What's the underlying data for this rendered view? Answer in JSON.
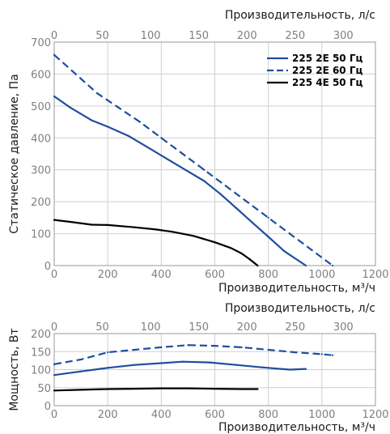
{
  "chart_data": [
    {
      "type": "line",
      "xlabel": "Производительность, м³/ч",
      "ylabel": "Статическое давление, Па",
      "x2label": "Производительность, л/с",
      "xlim": [
        0,
        1200
      ],
      "ylim": [
        0,
        700
      ],
      "x2lim": [
        0,
        333.33
      ],
      "xticks": [
        0,
        200,
        400,
        600,
        800,
        1000,
        1200
      ],
      "yticks": [
        0,
        100,
        200,
        300,
        400,
        500,
        600,
        700
      ],
      "x2ticks": [
        0,
        50,
        100,
        150,
        200,
        250,
        300
      ],
      "grid": true,
      "legend": "top-right",
      "series": [
        {
          "name": "225 2E 50 Гц",
          "color": "#1f4e9f",
          "dash": "solid",
          "x": [
            0,
            60,
            140,
            200,
            280,
            360,
            440,
            500,
            560,
            620,
            680,
            740,
            800,
            860,
            940
          ],
          "y": [
            530,
            495,
            455,
            435,
            405,
            365,
            325,
            295,
            265,
            225,
            180,
            135,
            90,
            45,
            0
          ]
        },
        {
          "name": "225 2E 60 Гц",
          "color": "#1f4e9f",
          "dash": "dashed",
          "x": [
            0,
            80,
            160,
            240,
            320,
            400,
            480,
            560,
            640,
            720,
            800,
            880,
            960,
            1040
          ],
          "y": [
            660,
            600,
            540,
            495,
            450,
            400,
            350,
            300,
            250,
            200,
            150,
            100,
            50,
            0
          ]
        },
        {
          "name": "225 4E 50 Гц",
          "color": "#000000",
          "dash": "solid",
          "x": [
            0,
            60,
            140,
            200,
            300,
            380,
            440,
            520,
            600,
            660,
            700,
            730,
            760
          ],
          "y": [
            143,
            137,
            128,
            127,
            120,
            113,
            106,
            93,
            73,
            55,
            38,
            20,
            0
          ]
        }
      ]
    },
    {
      "type": "line",
      "xlabel": "Производительность, м³/ч",
      "ylabel": "Мощность, Вт",
      "x2label": "Производительность, л/с",
      "xlim": [
        0,
        1200
      ],
      "ylim": [
        0,
        200
      ],
      "x2lim": [
        0,
        333.33
      ],
      "xticks": [
        0,
        200,
        400,
        600,
        800,
        1000,
        1200
      ],
      "yticks": [
        0,
        50,
        100,
        150,
        200
      ],
      "x2ticks": [
        0,
        50,
        100,
        150,
        200,
        250,
        300
      ],
      "grid": true,
      "series": [
        {
          "name": "225 2E 50 Гц",
          "color": "#1f4e9f",
          "dash": "solid",
          "x": [
            0,
            100,
            200,
            300,
            400,
            480,
            580,
            680,
            780,
            880,
            940
          ],
          "y": [
            85,
            95,
            105,
            113,
            118,
            122,
            120,
            113,
            106,
            100,
            102
          ]
        },
        {
          "name": "225 2E 60 Гц",
          "color": "#1f4e9f",
          "dash": "dashed",
          "x": [
            0,
            100,
            200,
            300,
            400,
            500,
            600,
            700,
            800,
            900,
            1000,
            1040
          ],
          "y": [
            115,
            128,
            148,
            155,
            162,
            168,
            166,
            162,
            155,
            148,
            143,
            140
          ]
        },
        {
          "name": "225 4E 50 Гц",
          "color": "#000000",
          "dash": "solid",
          "x": [
            0,
            100,
            200,
            300,
            400,
            500,
            600,
            700,
            760
          ],
          "y": [
            42,
            44,
            46,
            47,
            48,
            48,
            47,
            46,
            46
          ]
        }
      ]
    }
  ]
}
